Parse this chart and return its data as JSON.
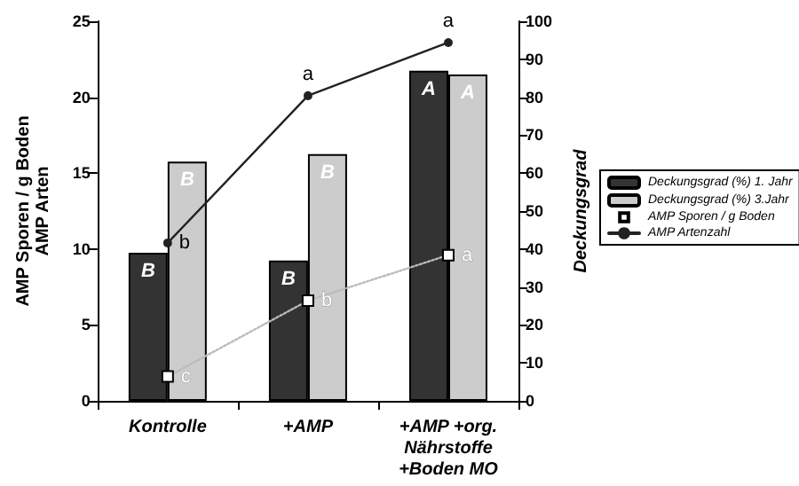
{
  "chart_data": {
    "type": "bar",
    "ylabel": "AMP Sporen / g Boden\nAMP Arten",
    "y2label": "Deckungsgrad",
    "categories": [
      "Kontrolle",
      "+AMP",
      "+AMP +org.\nNährstoffe\n+Boden MO"
    ],
    "series": [
      {
        "name": "Deckungsgrad (%) 1. Jahr",
        "axis": "y2",
        "color": "#333333",
        "values": [
          39,
          37,
          87
        ],
        "value_labels": [
          "B",
          "B",
          "A"
        ]
      },
      {
        "name": "Deckungsgrad (%) 3.Jahr",
        "axis": "y2",
        "color": "#cccccc",
        "values": [
          63,
          65,
          86
        ],
        "value_labels": [
          "B",
          "B",
          "A"
        ]
      },
      {
        "name": "AMP Sporen / g Boden",
        "type": "line",
        "color": "#bbbbbb",
        "marker": "square",
        "line_style": "dotted",
        "values": [
          1.6,
          6.6,
          9.6
        ],
        "value_labels": [
          "c",
          "b",
          "a"
        ]
      },
      {
        "name": "AMP Artenzahl",
        "type": "line",
        "color": "#222222",
        "marker": "circle",
        "line_style": "solid",
        "values": [
          10.4,
          20.1,
          23.6
        ],
        "value_labels": [
          "b",
          "a",
          "a"
        ]
      }
    ],
    "ylim": [
      0,
      25
    ],
    "yticks": [
      0,
      5,
      10,
      15,
      20,
      25
    ],
    "y2lim": [
      0,
      100
    ],
    "y2ticks": [
      0,
      10,
      20,
      30,
      40,
      50,
      60,
      70,
      80,
      90,
      100
    ],
    "grid": false,
    "legend": "right"
  }
}
